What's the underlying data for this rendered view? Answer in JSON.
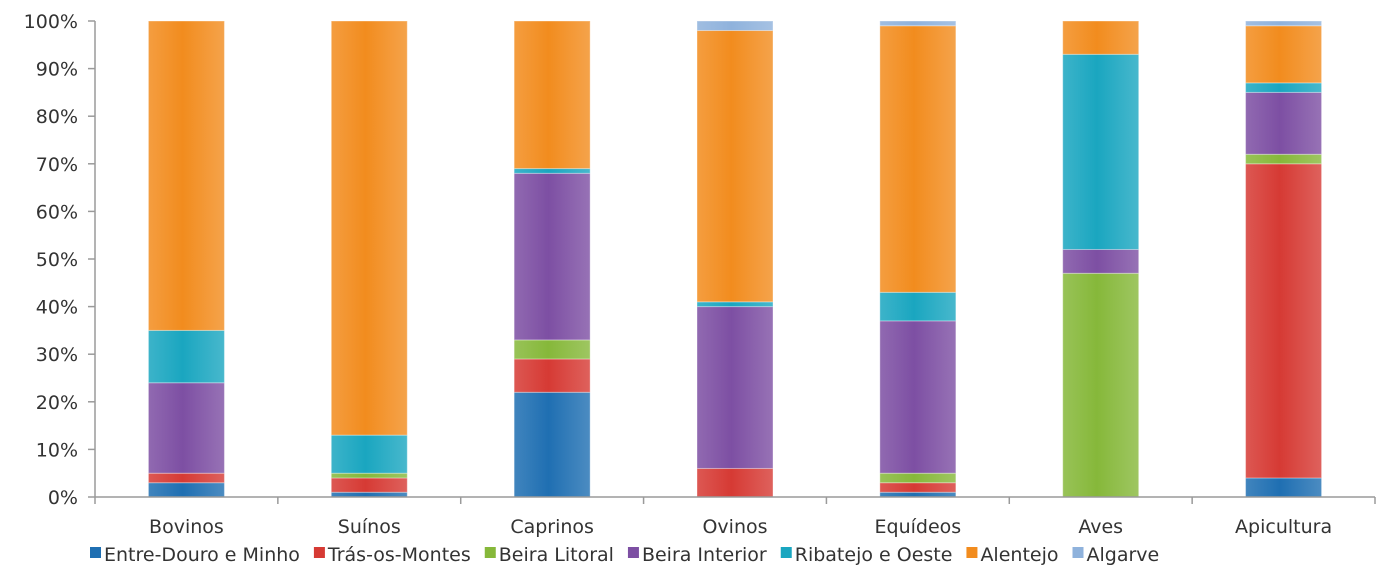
{
  "chart_data": {
    "type": "bar",
    "stacked": true,
    "percent": true,
    "categories": [
      "Bovinos",
      "Suínos",
      "Caprinos",
      "Ovinos",
      "Equídeos",
      "Aves",
      "Apicultura"
    ],
    "ylim": [
      0,
      100
    ],
    "yticks": [
      "0%",
      "10%",
      "20%",
      "30%",
      "40%",
      "50%",
      "60%",
      "70%",
      "80%",
      "90%",
      "100%"
    ],
    "legend_position": "bottom",
    "grid": false,
    "series": [
      {
        "name": "Entre-Douro e Minho",
        "color": "#1f6fb2",
        "values": [
          3,
          1,
          22,
          0,
          1,
          0,
          4
        ]
      },
      {
        "name": "Trás-os-Montes",
        "color": "#d63a34",
        "values": [
          2,
          3,
          7,
          6,
          2,
          0,
          66
        ]
      },
      {
        "name": "Beira Litoral",
        "color": "#86b83a",
        "values": [
          0,
          1,
          4,
          0,
          2,
          47,
          2
        ]
      },
      {
        "name": "Beira Interior",
        "color": "#7d4fa3",
        "values": [
          19,
          0,
          35,
          34,
          32,
          5,
          13
        ]
      },
      {
        "name": "Ribatejo e Oeste",
        "color": "#1aa6c0",
        "values": [
          11,
          8,
          1,
          1,
          6,
          41,
          2
        ]
      },
      {
        "name": "Alentejo",
        "color": "#f28c1e",
        "values": [
          65,
          87,
          31,
          57,
          56,
          7,
          12
        ]
      },
      {
        "name": "Algarve",
        "color": "#8fb2dc",
        "values": [
          0,
          0,
          0,
          2,
          1,
          0,
          1
        ]
      }
    ]
  }
}
